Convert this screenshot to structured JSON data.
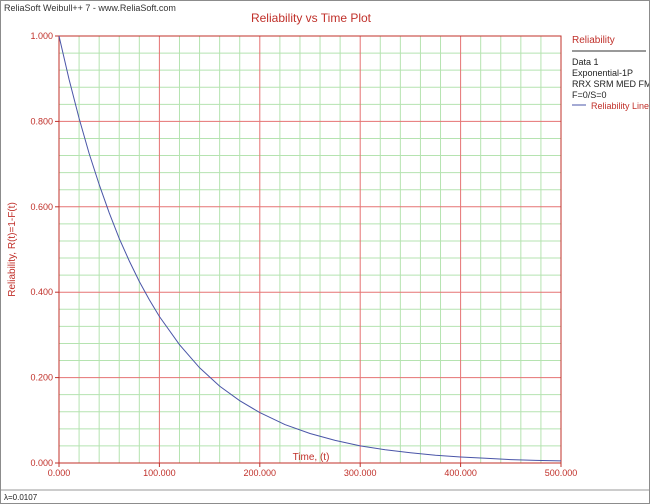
{
  "app": {
    "brand": "ReliaSoft Weibull++ 7 - www.ReliaSoft.com",
    "footer": "λ=0.0107"
  },
  "legend": {
    "heading": "Reliability",
    "lines": [
      "Data 1",
      "Exponential-1P",
      "RRX SRM MED FM",
      "F=0/S=0"
    ],
    "series_label": "Reliability Line"
  },
  "colors": {
    "accent": "#c0302a",
    "minor_grid": "#b5e3b0",
    "major_grid": "#e57373",
    "curve": "#4a55a8"
  },
  "chart_data": {
    "type": "line",
    "title": "Reliability vs Time Plot",
    "xlabel": "Time, (t)",
    "ylabel": "Reliability, R(t)=1-F(t)",
    "xlim": [
      0,
      500
    ],
    "ylim": [
      0,
      1
    ],
    "x_ticks": [
      "0.000",
      "100.000",
      "200.000",
      "300.000",
      "400.000",
      "500.000"
    ],
    "y_ticks": [
      "0.000",
      "0.200",
      "0.400",
      "0.600",
      "0.800",
      "1.000"
    ],
    "grid": true,
    "legend_position": "right",
    "series": [
      {
        "name": "Reliability Line",
        "x": [
          0,
          10,
          20,
          30,
          40,
          50,
          60,
          70,
          80,
          90,
          100,
          120,
          140,
          160,
          180,
          200,
          225,
          250,
          275,
          300,
          325,
          350,
          375,
          400,
          425,
          450,
          475,
          500
        ],
        "y": [
          1.0,
          0.899,
          0.807,
          0.725,
          0.652,
          0.586,
          0.526,
          0.473,
          0.425,
          0.382,
          0.343,
          0.277,
          0.223,
          0.18,
          0.146,
          0.118,
          0.09,
          0.069,
          0.053,
          0.04,
          0.031,
          0.024,
          0.018,
          0.014,
          0.011,
          0.008,
          0.006,
          0.005
        ]
      }
    ]
  }
}
